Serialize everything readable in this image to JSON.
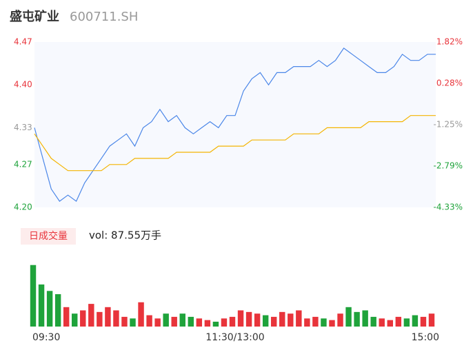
{
  "header": {
    "name": "盛屯矿业",
    "code": "600711.SH"
  },
  "chart_data": [
    {
      "type": "line",
      "ylim": [
        4.2,
        4.47
      ],
      "yticks": [
        {
          "value": 4.47,
          "label": "4.47"
        },
        {
          "value": 4.4,
          "label": "4.40"
        },
        {
          "value": 4.33,
          "label": "4.33"
        },
        {
          "value": 4.27,
          "label": "4.27"
        },
        {
          "value": 4.2,
          "label": "4.20"
        }
      ],
      "ytick_colors": [
        "#e8343b",
        "#e8343b",
        "#999999",
        "#1fa33b",
        "#1fa33b"
      ],
      "y2lim": [
        -4.33,
        1.82
      ],
      "y2ticks": [
        {
          "value": 1.82,
          "label": "1.82%"
        },
        {
          "value": 0.28,
          "label": "0.28%"
        },
        {
          "value": -1.25,
          "label": "-1.25%"
        },
        {
          "value": -2.79,
          "label": "-2.79%"
        },
        {
          "value": -4.33,
          "label": "-4.33%"
        }
      ],
      "xlim": [
        0,
        48
      ],
      "xticks": [
        {
          "value": 0,
          "label": "09:30"
        },
        {
          "value": 24,
          "label": "11:30/13:00"
        },
        {
          "value": 48,
          "label": "15:00"
        }
      ],
      "series": [
        {
          "color": "#4a86e8",
          "values": [
            4.33,
            4.28,
            4.23,
            4.21,
            4.22,
            4.21,
            4.24,
            4.26,
            4.28,
            4.3,
            4.31,
            4.32,
            4.3,
            4.33,
            4.34,
            4.36,
            4.34,
            4.35,
            4.33,
            4.32,
            4.33,
            4.34,
            4.33,
            4.35,
            4.35,
            4.39,
            4.41,
            4.42,
            4.4,
            4.42,
            4.42,
            4.43,
            4.43,
            4.43,
            4.44,
            4.43,
            4.44,
            4.46,
            4.45,
            4.44,
            4.43,
            4.42,
            4.42,
            4.43,
            4.45,
            4.44,
            4.44,
            4.45,
            4.45
          ]
        },
        {
          "color": "#f4b400",
          "values": [
            4.32,
            4.3,
            4.28,
            4.27,
            4.26,
            4.26,
            4.26,
            4.26,
            4.26,
            4.27,
            4.27,
            4.27,
            4.28,
            4.28,
            4.28,
            4.28,
            4.28,
            4.29,
            4.29,
            4.29,
            4.29,
            4.29,
            4.3,
            4.3,
            4.3,
            4.3,
            4.31,
            4.31,
            4.31,
            4.31,
            4.31,
            4.32,
            4.32,
            4.32,
            4.32,
            4.33,
            4.33,
            4.33,
            4.33,
            4.33,
            4.34,
            4.34,
            4.34,
            4.34,
            4.34,
            4.35,
            4.35,
            4.35,
            4.35
          ]
        }
      ]
    },
    {
      "type": "bar",
      "tag": "日成交量",
      "label": "vol: 87.55万手",
      "ylim": [
        0,
        4
      ],
      "values": [
        3.8,
        2.6,
        2.2,
        2.0,
        1.2,
        0.8,
        1.0,
        1.4,
        0.9,
        1.2,
        1.0,
        0.6,
        0.5,
        1.5,
        0.7,
        0.5,
        0.8,
        0.6,
        0.8,
        0.6,
        0.5,
        0.4,
        0.3,
        0.5,
        0.6,
        1.0,
        0.9,
        0.8,
        0.7,
        0.6,
        0.9,
        0.8,
        1.0,
        0.5,
        0.6,
        0.5,
        0.4,
        0.8,
        1.2,
        0.9,
        1.0,
        0.6,
        0.5,
        0.4,
        0.6,
        0.5,
        0.7,
        0.6,
        0.8
      ],
      "colors": [
        "#1fa33b",
        "#1fa33b",
        "#1fa33b",
        "#1fa33b",
        "#e8343b",
        "#1fa33b",
        "#e8343b",
        "#e8343b",
        "#e8343b",
        "#e8343b",
        "#e8343b",
        "#e8343b",
        "#1fa33b",
        "#e8343b",
        "#e8343b",
        "#e8343b",
        "#1fa33b",
        "#e8343b",
        "#1fa33b",
        "#1fa33b",
        "#e8343b",
        "#e8343b",
        "#1fa33b",
        "#e8343b",
        "#e8343b",
        "#e8343b",
        "#e8343b",
        "#e8343b",
        "#1fa33b",
        "#e8343b",
        "#e8343b",
        "#e8343b",
        "#e8343b",
        "#e8343b",
        "#e8343b",
        "#1fa33b",
        "#e8343b",
        "#e8343b",
        "#1fa33b",
        "#1fa33b",
        "#1fa33b",
        "#1fa33b",
        "#e8343b",
        "#e8343b",
        "#e8343b",
        "#1fa33b",
        "#1fa33b",
        "#e8343b",
        "#e8343b"
      ]
    }
  ]
}
